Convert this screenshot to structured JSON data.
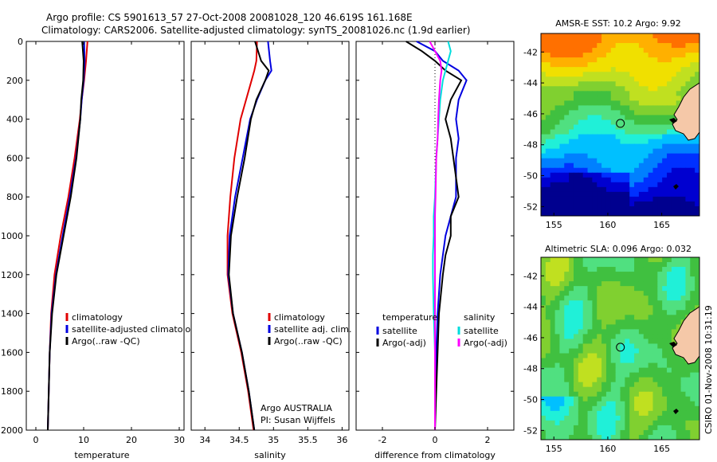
{
  "header": {
    "line1": "Argo profile: CS 5901613_57 27-Oct-2008 20081028_120 46.619S 161.168E",
    "line2": "Climatology: CARS2006. Satellite-adjusted climatology: synTS_20081026.nc (1.9d earlier)"
  },
  "footer": {
    "credit_line1": "Argo AUSTRALIA",
    "credit_line2": "PI: Susan Wijffels",
    "stamp": "CSIRO 01-Nov-2008 10:31:19"
  },
  "colors": {
    "climatology": "#e00000",
    "satellite": "#0000e0",
    "argo": "#000000",
    "salinity_satellite": "#00dddd",
    "salinity_argo": "#ff00ff",
    "land": "#f5c8a8"
  },
  "chart_data": [
    {
      "type": "line",
      "id": "temperature",
      "xlabel": "temperature",
      "xlim": [
        -2,
        31
      ],
      "ylim": [
        2000,
        0
      ],
      "xticks": [
        "0",
        "10",
        "20",
        "30"
      ],
      "yticks": [
        "0",
        "200",
        "400",
        "600",
        "800",
        "1000",
        "1200",
        "1400",
        "1600",
        "1800",
        "2000"
      ],
      "y_inverted": true,
      "legend_position": "lower-right",
      "depth": [
        0,
        100,
        200,
        300,
        400,
        600,
        800,
        1000,
        1200,
        1400,
        1600,
        1800,
        2000
      ],
      "series": [
        {
          "name": "climatology",
          "color": "#e00000",
          "x": [
            10.8,
            10.5,
            10.1,
            9.6,
            9.2,
            8.1,
            6.8,
            5.2,
            3.9,
            3.2,
            2.9,
            2.7,
            2.5
          ]
        },
        {
          "name": "satellite-adjusted climatology",
          "color": "#0000e0",
          "x": [
            10.1,
            10.2,
            10.0,
            9.6,
            9.3,
            8.4,
            7.1,
            5.6,
            4.2,
            3.3,
            2.9,
            2.7,
            2.5
          ]
        },
        {
          "name": "Argo(..raw -QC)",
          "color": "#000000",
          "x": [
            9.7,
            10.0,
            9.9,
            9.5,
            9.3,
            8.5,
            7.3,
            5.8,
            4.3,
            3.4,
            2.9,
            2.7,
            2.5
          ]
        }
      ]
    },
    {
      "type": "line",
      "id": "salinity",
      "xlabel": "salinity",
      "xlim": [
        33.8,
        36.1
      ],
      "ylim": [
        2000,
        0
      ],
      "xticks": [
        "34",
        "34.5",
        "35",
        "35.5",
        "36"
      ],
      "y_inverted": true,
      "legend_position": "lower-right",
      "depth": [
        0,
        100,
        150,
        200,
        300,
        400,
        600,
        800,
        1000,
        1200,
        1400,
        1600,
        1800,
        2000
      ],
      "series": [
        {
          "name": "climatology",
          "color": "#e00000",
          "x": [
            34.76,
            34.75,
            34.72,
            34.68,
            34.6,
            34.52,
            34.43,
            34.37,
            34.33,
            34.33,
            34.4,
            34.53,
            34.63,
            34.71
          ]
        },
        {
          "name": "satellite adj. clim.",
          "color": "#0000e0",
          "x": [
            34.92,
            34.95,
            34.97,
            34.88,
            34.76,
            34.66,
            34.55,
            34.44,
            34.36,
            34.34,
            34.41,
            34.54,
            34.64,
            34.72
          ]
        },
        {
          "name": "Argo(..raw -QC)",
          "color": "#000000",
          "x": [
            34.73,
            34.82,
            34.93,
            34.88,
            34.75,
            34.67,
            34.58,
            34.47,
            34.38,
            34.35,
            34.41,
            34.54,
            34.64,
            34.72
          ]
        }
      ]
    },
    {
      "type": "line",
      "id": "difference",
      "xlabel": "difference from climatology",
      "xlim": [
        -3,
        3
      ],
      "ylim": [
        2000,
        0
      ],
      "xticks": [
        "-2",
        "0",
        "2"
      ],
      "y_inverted": true,
      "legend_position": "lower",
      "legend_headers": [
        "temperature",
        "salinity"
      ],
      "depth": [
        0,
        50,
        100,
        150,
        200,
        300,
        400,
        500,
        600,
        800,
        900,
        1000,
        1100,
        1200,
        1400,
        1600,
        1800,
        2000
      ],
      "series": [
        {
          "name": "satellite",
          "group": "temperature",
          "color": "#0000e0",
          "x": [
            -0.7,
            0.0,
            0.3,
            0.9,
            1.2,
            0.9,
            0.8,
            0.9,
            0.8,
            0.8,
            0.6,
            0.4,
            0.3,
            0.2,
            0.1,
            0.05,
            0.0,
            0.0
          ]
        },
        {
          "name": "Argo(-adj)",
          "group": "temperature",
          "color": "#000000",
          "x": [
            -1.1,
            -0.5,
            0.0,
            0.4,
            1.0,
            0.6,
            0.4,
            0.6,
            0.7,
            0.9,
            0.6,
            0.6,
            0.4,
            0.3,
            0.15,
            0.1,
            0.05,
            0.0
          ]
        },
        {
          "name": "satellite",
          "group": "salinity",
          "color": "#00dddd",
          "x": [
            0.5,
            0.6,
            0.5,
            0.4,
            0.3,
            0.2,
            0.15,
            0.1,
            0.05,
            0.0,
            -0.05,
            -0.05,
            -0.08,
            -0.08,
            -0.05,
            0.0,
            0.0,
            0.0
          ]
        },
        {
          "name": "Argo(-adj)",
          "group": "salinity",
          "color": "#ff00ff",
          "x": [
            -0.2,
            0.0,
            0.2,
            0.25,
            0.2,
            0.15,
            0.12,
            0.1,
            0.05,
            0.02,
            0.0,
            0.0,
            0.0,
            0.0,
            0.0,
            0.0,
            0.0,
            0.0
          ]
        }
      ]
    },
    {
      "type": "heatmap",
      "id": "sst_map",
      "title": "AMSR-E SST: 10.2 Argo: 9.92",
      "xticks": [
        "155",
        "160",
        "165"
      ],
      "yticks": [
        "-42",
        "-44",
        "-46",
        "-48",
        "-50",
        "-52"
      ],
      "xlim": [
        153.8,
        168.5
      ],
      "ylim": [
        -52.6,
        -40.8
      ],
      "marker": {
        "lon": 161.168,
        "lat": -46.619
      }
    },
    {
      "type": "heatmap",
      "id": "sla_map",
      "title": "Altimetric SLA: 0.096 Argo: 0.032",
      "xticks": [
        "155",
        "160",
        "165"
      ],
      "yticks": [
        "-42",
        "-44",
        "-46",
        "-48",
        "-50",
        "-52"
      ],
      "xlim": [
        153.8,
        168.5
      ],
      "ylim": [
        -52.6,
        -40.8
      ],
      "marker": {
        "lon": 161.168,
        "lat": -46.619
      }
    }
  ]
}
